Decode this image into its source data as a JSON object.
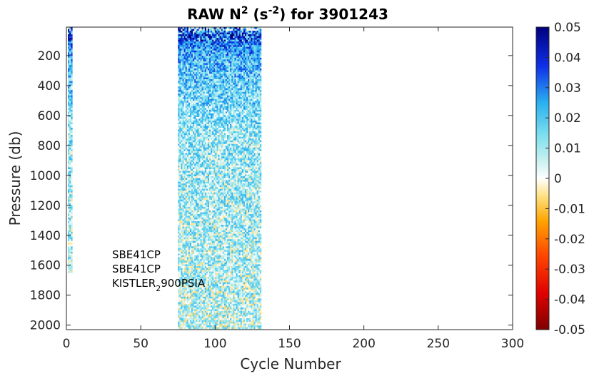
{
  "chart_data": {
    "type": "heatmap",
    "title": {
      "prefix": "RAW N",
      "sup1": "2",
      "mid": " (s",
      "sup2": "-2",
      "suffix": ") for 3901243"
    },
    "xlabel": "Cycle Number",
    "ylabel": "Pressure (db)",
    "xlim": [
      0,
      300
    ],
    "ylim": [
      2030,
      10
    ],
    "y_reversed": true,
    "xticks": [
      0,
      50,
      100,
      150,
      200,
      250,
      300
    ],
    "yticks": [
      200,
      400,
      600,
      800,
      1000,
      1200,
      1400,
      1600,
      1800,
      2000
    ],
    "grid": false,
    "colorbar": {
      "clim": [
        -0.05,
        0.05
      ],
      "ticks": [
        "0.05",
        "0.04",
        "0.03",
        "0.02",
        "0.01",
        "0",
        "-0.01",
        "-0.02",
        "-0.03",
        "-0.04",
        "-0.05"
      ],
      "colormap": "jet-with-white-center"
    },
    "annotations": {
      "line1": "SBE41CP",
      "line2": "SBE41CP",
      "line3_main": "KISTLER",
      "line3_sub": "2",
      "line3_tail": "900PSIA"
    },
    "data_blocks": [
      {
        "cycle_start": 1,
        "cycle_end": 4,
        "pressure_top": 10,
        "pressure_bottom": 1650
      },
      {
        "cycle_start": 75,
        "cycle_end": 131,
        "pressure_top": 10,
        "pressure_bottom": 2030
      }
    ],
    "profile_description": "N2 strongly positive (0.03-0.05) near surface, decreasing to ~0.005-0.01 at depth"
  }
}
